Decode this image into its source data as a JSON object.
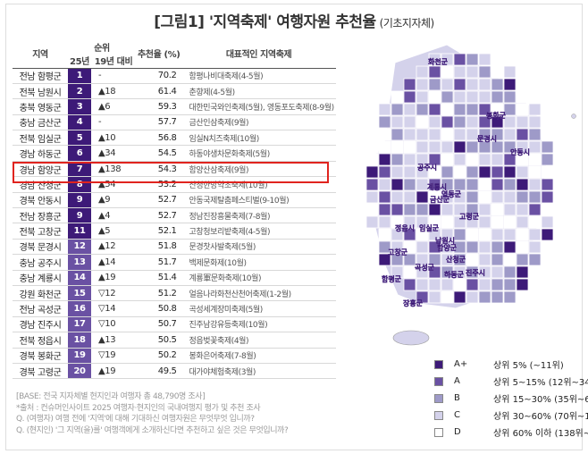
{
  "title": "[그림1] '지역축제' 여행자원 추천율",
  "subtitle": "(기초지자체)",
  "table": {
    "headers": {
      "region": "지역",
      "rank_group": "순위",
      "rank25": "25년",
      "change": "19년 대비",
      "rate": "추천율 (%)",
      "festival": "대표적인 지역축제"
    },
    "rows": [
      {
        "region": "전남 함평군",
        "rank": "1",
        "change": "-",
        "value": "70.2",
        "festival": "함평나비대축제(4-5월)"
      },
      {
        "region": "전북 남원시",
        "rank": "2",
        "change": "▲18",
        "value": "61.4",
        "festival": "춘향제(4-5월)"
      },
      {
        "region": "충북 영동군",
        "rank": "3",
        "change": "▲6",
        "value": "59.3",
        "festival": "대한민국와인축제(5월), 영동포도축제(8-9월)"
      },
      {
        "region": "충남 금산군",
        "rank": "4",
        "change": "-",
        "value": "57.7",
        "festival": "금산인삼축제(9월)"
      },
      {
        "region": "전북 임실군",
        "rank": "5",
        "change": "▲10",
        "value": "56.8",
        "festival": "임실N치즈축제(10월)"
      },
      {
        "region": "경남 하동군",
        "rank": "6",
        "change": "▲34",
        "value": "54.5",
        "festival": "하동야생차문화축제(5월)"
      },
      {
        "region": "경남 함양군",
        "rank": "7",
        "change": "▲138",
        "value": "54.3",
        "festival": "함양산삼축제(9월)"
      },
      {
        "region": "경남 산청군",
        "rank": "8",
        "change": "▲54",
        "value": "53.2",
        "festival": "산청한방약초축제(10월)"
      },
      {
        "region": "경북 안동시",
        "rank": "9",
        "change": "▲9",
        "value": "52.7",
        "festival": "안동국제탈춤페스티벌(9-10월)"
      },
      {
        "region": "전남 장흥군",
        "rank": "9",
        "change": "▲4",
        "value": "52.7",
        "festival": "정남진장흥물축제(7-8월)"
      },
      {
        "region": "전북 고창군",
        "rank": "11",
        "change": "▲5",
        "value": "52.1",
        "festival": "고창청보리밭축제(4-5월)"
      },
      {
        "region": "경북 문경시",
        "rank": "12",
        "change": "▲12",
        "value": "51.8",
        "festival": "문경찻사발축제(5월)"
      },
      {
        "region": "충남 공주시",
        "rank": "13",
        "change": "▲14",
        "value": "51.7",
        "festival": "백제문화제(10월)"
      },
      {
        "region": "충남 계룡시",
        "rank": "14",
        "change": "▲19",
        "value": "51.4",
        "festival": "계룡軍문화축제(10월)"
      },
      {
        "region": "강원 화천군",
        "rank": "15",
        "change": "▽12",
        "value": "51.2",
        "festival": "얼음나라화천산천어축제(1-2월)"
      },
      {
        "region": "전남 곡성군",
        "rank": "16",
        "change": "▽14",
        "value": "50.8",
        "festival": "곡성세계장미축제(5월)"
      },
      {
        "region": "경남 진주시",
        "rank": "17",
        "change": "▽10",
        "value": "50.7",
        "festival": "진주남강유등축제(10월)"
      },
      {
        "region": "전북 정읍시",
        "rank": "18",
        "change": "▲13",
        "value": "50.5",
        "festival": "정읍벚꽃축제(4월)"
      },
      {
        "region": "경북 봉화군",
        "rank": "19",
        "change": "▽19",
        "value": "50.2",
        "festival": "봉화은어축제(7-8월)"
      },
      {
        "region": "경북 고령군",
        "rank": "20",
        "change": "▲19",
        "value": "49.5",
        "festival": "대가야체험축제(3월)"
      }
    ]
  },
  "notes": [
    "[BASE: 전국 지자체별 현지인과 여행자 총 48,790명 조사]",
    "*출처 : 컨슈머인사이트 2025 여행자·현지인의 국내여행지 평가 및 추천 조사",
    "Q. (여행자) 여행 전에 '지역'에 대해 기대하신 여행자원은 무엇무엇 입니까?",
    "Q. (현지인) '그 지역(을)를' 여행객에게 소개하신다면 추천하고 싶은 것은 무엇입니까?"
  ],
  "legend": [
    {
      "code": "A+",
      "desc": "상위 5% (~11위)",
      "color": "#3d1a78"
    },
    {
      "code": "A",
      "desc": "상위 5~15% (12위~34위)",
      "color": "#6a51a3"
    },
    {
      "code": "B",
      "desc": "상위 15~30% (35위~69위)",
      "color": "#9e9ac8"
    },
    {
      "code": "C",
      "desc": "상위 30~60% (70위~137위)",
      "color": "#d4d2eb"
    },
    {
      "code": "D",
      "desc": "상위 60% 이하 (138위~)",
      "color": "#ffffff"
    }
  ],
  "map_labels": [
    "화천군",
    "봉화군",
    "안동시",
    "문경시",
    "공주시",
    "계룡시",
    "금산군",
    "영동군",
    "고령군",
    "정읍시",
    "임실군",
    "남원시",
    "함양군",
    "고창군",
    "산청군",
    "곡성군",
    "하동군",
    "진주시",
    "함평군",
    "장흥군"
  ],
  "chart_data": {
    "type": "table",
    "columns": [
      "지역",
      "25년",
      "19년 대비",
      "추천율 (%)",
      "대표적인 지역축제"
    ],
    "categories": [
      "전남 함평군",
      "전북 남원시",
      "충북 영동군",
      "충남 금산군",
      "전북 임실군",
      "경남 하동군",
      "경남 함양군",
      "경남 산청군",
      "경북 안동시",
      "전남 장흥군",
      "전북 고창군",
      "경북 문경시",
      "충남 공주시",
      "충남 계룡시",
      "강원 화천군",
      "전남 곡성군",
      "경남 진주시",
      "전북 정읍시",
      "경북 봉화군",
      "경북 고령군"
    ],
    "values": [
      70.2,
      61.4,
      59.3,
      57.7,
      56.8,
      54.5,
      54.3,
      53.2,
      52.7,
      52.7,
      52.1,
      51.8,
      51.7,
      51.4,
      51.2,
      50.8,
      50.7,
      50.5,
      50.2,
      49.5
    ],
    "rank_colors": {
      "top": "#3d1a78",
      "next": "#6a51a3"
    }
  }
}
